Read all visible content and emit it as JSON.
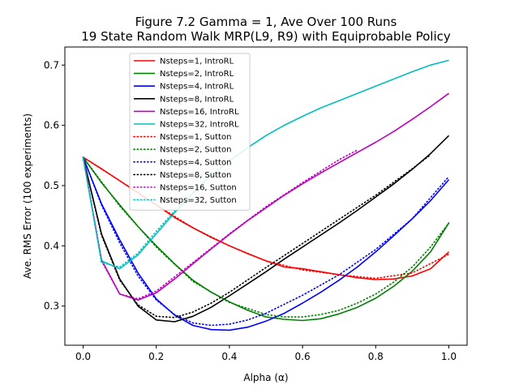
{
  "chart_data": {
    "type": "line",
    "title": "Figure 7.2 Gamma = 1, Ave Over 100 Runs",
    "subtitle": "19 State Random Walk MRP(L9, R9) with Equiprobable Policy",
    "xlabel": "Alpha (α)",
    "ylabel": "Ave. RMS Error (100 experiments)",
    "xlim": [
      -0.05,
      1.05
    ],
    "ylim": [
      0.235,
      0.73
    ],
    "xticks": [
      "0.0",
      "0.2",
      "0.4",
      "0.6",
      "0.8",
      "1.0"
    ],
    "yticks": [
      "0.3",
      "0.4",
      "0.5",
      "0.6",
      "0.7"
    ],
    "grid": false,
    "legend_position": "upper-center",
    "series": [
      {
        "name": "Nsteps=1, IntroRL",
        "color": "#ff0000",
        "style": "solid",
        "x": [
          0,
          0.05,
          0.1,
          0.15,
          0.2,
          0.25,
          0.3,
          0.35,
          0.4,
          0.45,
          0.5,
          0.55,
          0.6,
          0.65,
          0.7,
          0.75,
          0.8,
          0.85,
          0.9,
          0.95,
          1.0
        ],
        "y": [
          0.547,
          0.528,
          0.508,
          0.488,
          0.468,
          0.447,
          0.43,
          0.414,
          0.4,
          0.387,
          0.375,
          0.365,
          0.362,
          0.357,
          0.352,
          0.347,
          0.344,
          0.345,
          0.35,
          0.362,
          0.39
        ]
      },
      {
        "name": "Nsteps=2, IntroRL",
        "color": "#008000",
        "style": "solid",
        "x": [
          0,
          0.05,
          0.1,
          0.15,
          0.2,
          0.25,
          0.3,
          0.35,
          0.4,
          0.45,
          0.5,
          0.55,
          0.6,
          0.65,
          0.7,
          0.75,
          0.8,
          0.85,
          0.9,
          0.95,
          1.0
        ],
        "y": [
          0.547,
          0.505,
          0.468,
          0.432,
          0.4,
          0.37,
          0.343,
          0.323,
          0.307,
          0.293,
          0.282,
          0.278,
          0.276,
          0.279,
          0.287,
          0.298,
          0.313,
          0.333,
          0.358,
          0.39,
          0.438
        ]
      },
      {
        "name": "Nsteps=4, IntroRL",
        "color": "#0000ff",
        "style": "solid",
        "x": [
          0,
          0.05,
          0.1,
          0.15,
          0.2,
          0.25,
          0.3,
          0.35,
          0.4,
          0.45,
          0.5,
          0.55,
          0.6,
          0.65,
          0.7,
          0.75,
          0.8,
          0.85,
          0.9,
          0.95,
          1.0
        ],
        "y": [
          0.547,
          0.47,
          0.41,
          0.355,
          0.312,
          0.285,
          0.268,
          0.261,
          0.26,
          0.265,
          0.275,
          0.288,
          0.305,
          0.323,
          0.343,
          0.365,
          0.39,
          0.417,
          0.445,
          0.475,
          0.51
        ]
      },
      {
        "name": "Nsteps=8, IntroRL",
        "color": "#000000",
        "style": "solid",
        "x": [
          0,
          0.05,
          0.1,
          0.15,
          0.2,
          0.25,
          0.3,
          0.35,
          0.4,
          0.45,
          0.5,
          0.55,
          0.6,
          0.65,
          0.7,
          0.75,
          0.8,
          0.85,
          0.9,
          0.95,
          1.0
        ],
        "y": [
          0.547,
          0.42,
          0.345,
          0.3,
          0.277,
          0.274,
          0.283,
          0.298,
          0.317,
          0.337,
          0.357,
          0.378,
          0.398,
          0.418,
          0.438,
          0.459,
          0.481,
          0.503,
          0.527,
          0.553,
          0.583
        ]
      },
      {
        "name": "Nsteps=16, IntroRL",
        "color": "#bf00bf",
        "style": "solid",
        "x": [
          0,
          0.05,
          0.1,
          0.15,
          0.2,
          0.25,
          0.3,
          0.35,
          0.4,
          0.45,
          0.5,
          0.55,
          0.6,
          0.65,
          0.7,
          0.75,
          0.8,
          0.85,
          0.9,
          0.95,
          1.0
        ],
        "y": [
          0.547,
          0.377,
          0.32,
          0.31,
          0.322,
          0.345,
          0.37,
          0.395,
          0.419,
          0.442,
          0.463,
          0.484,
          0.503,
          0.521,
          0.538,
          0.555,
          0.572,
          0.59,
          0.61,
          0.631,
          0.653
        ]
      },
      {
        "name": "Nsteps=32, IntroRL",
        "color": "#00bfbf",
        "style": "solid",
        "x": [
          0,
          0.05,
          0.1,
          0.15,
          0.2,
          0.25,
          0.3,
          0.35,
          0.4,
          0.45,
          0.5,
          0.55,
          0.6,
          0.65,
          0.7,
          0.75,
          0.8,
          0.85,
          0.9,
          0.95,
          1.0
        ],
        "y": [
          0.547,
          0.375,
          0.362,
          0.385,
          0.42,
          0.455,
          0.488,
          0.517,
          0.541,
          0.563,
          0.583,
          0.6,
          0.615,
          0.629,
          0.641,
          0.653,
          0.665,
          0.677,
          0.689,
          0.7,
          0.708
        ]
      },
      {
        "name": "Nsteps=1, Sutton",
        "color": "#ff0000",
        "style": "dotted",
        "x": [
          0,
          0.1,
          0.2,
          0.3,
          0.4,
          0.5,
          0.6,
          0.7,
          0.8,
          0.9,
          1.0
        ],
        "y": [
          0.547,
          0.508,
          0.468,
          0.43,
          0.4,
          0.375,
          0.36,
          0.352,
          0.346,
          0.355,
          0.386
        ]
      },
      {
        "name": "Nsteps=2, Sutton",
        "color": "#008000",
        "style": "dotted",
        "x": [
          0,
          0.1,
          0.2,
          0.3,
          0.4,
          0.5,
          0.55,
          0.6,
          0.65,
          0.7,
          0.75,
          0.8,
          0.85,
          0.9,
          0.95,
          1.0
        ],
        "y": [
          0.547,
          0.466,
          0.398,
          0.341,
          0.306,
          0.286,
          0.282,
          0.282,
          0.286,
          0.293,
          0.305,
          0.32,
          0.34,
          0.365,
          0.398,
          0.438
        ]
      },
      {
        "name": "Nsteps=4, Sutton",
        "color": "#0000ff",
        "style": "dotted",
        "x": [
          0,
          0.05,
          0.1,
          0.15,
          0.2,
          0.25,
          0.3,
          0.35,
          0.4,
          0.45,
          0.5,
          0.6,
          0.7,
          0.8,
          0.9,
          1.0
        ],
        "y": [
          0.547,
          0.468,
          0.405,
          0.35,
          0.31,
          0.286,
          0.272,
          0.268,
          0.27,
          0.277,
          0.288,
          0.318,
          0.352,
          0.394,
          0.445,
          0.515
        ]
      },
      {
        "name": "Nsteps=8, Sutton",
        "color": "#000000",
        "style": "dotted",
        "x": [
          0,
          0.05,
          0.1,
          0.15,
          0.2,
          0.25,
          0.3,
          0.35,
          0.4,
          0.5,
          0.6,
          0.7,
          0.8,
          0.9,
          0.95
        ],
        "y": [
          0.547,
          0.418,
          0.343,
          0.302,
          0.283,
          0.281,
          0.29,
          0.305,
          0.323,
          0.364,
          0.404,
          0.444,
          0.484,
          0.528,
          0.551
        ]
      },
      {
        "name": "Nsteps=16, Sutton",
        "color": "#bf00bf",
        "style": "dotted",
        "x": [
          0,
          0.05,
          0.1,
          0.15,
          0.2,
          0.3,
          0.4,
          0.5,
          0.6,
          0.7,
          0.75
        ],
        "y": [
          0.547,
          0.375,
          0.32,
          0.312,
          0.325,
          0.372,
          0.42,
          0.465,
          0.505,
          0.543,
          0.559
        ]
      },
      {
        "name": "Nsteps=32, Sutton",
        "color": "#00bfbf",
        "style": "dotted",
        "x": [
          0,
          0.05,
          0.1,
          0.15,
          0.2,
          0.25
        ],
        "y": [
          0.547,
          0.372,
          0.365,
          0.388,
          0.424,
          0.458
        ]
      }
    ]
  }
}
